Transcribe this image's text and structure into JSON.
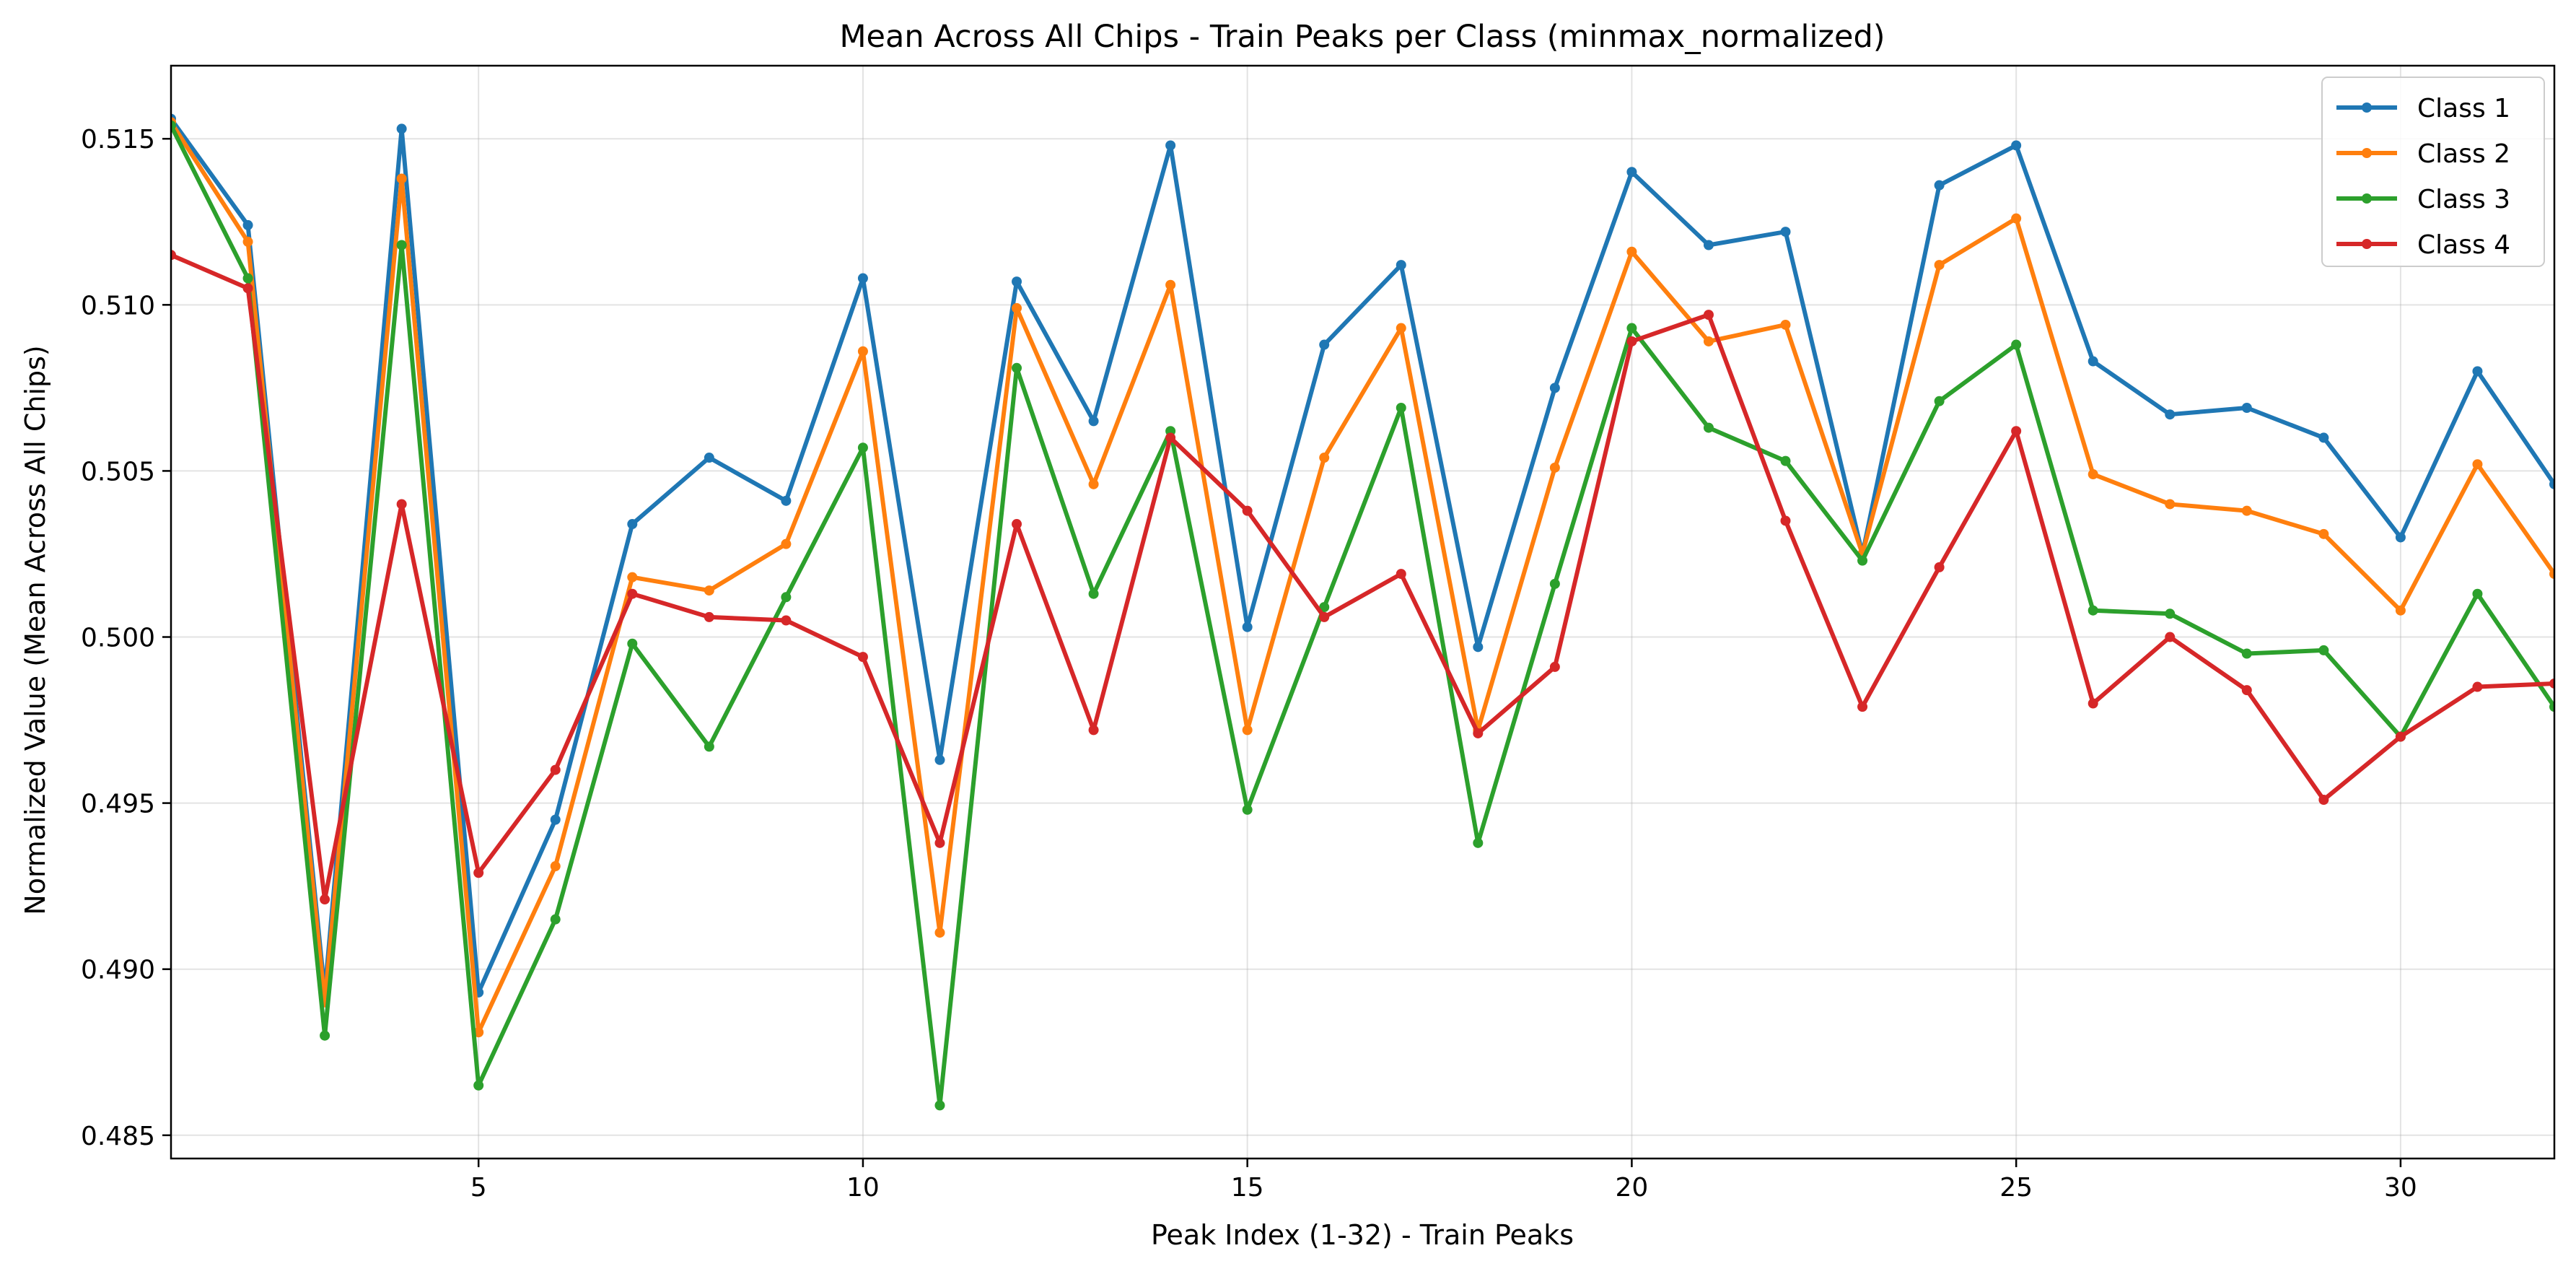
{
  "chart_data": {
    "type": "line",
    "title": "Mean Across All Chips - Train Peaks per Class (minmax_normalized)",
    "xlabel": "Peak Index (1-32) - Train Peaks",
    "ylabel": "Normalized Value (Mean Across All Chips)",
    "xlim": [
      1,
      32
    ],
    "ylim": [
      0.4843,
      0.5172
    ],
    "xticks": [
      5,
      10,
      15,
      20,
      25,
      30
    ],
    "yticks": [
      0.485,
      0.49,
      0.495,
      0.5,
      0.505,
      0.51,
      0.515
    ],
    "xtick_labels": [
      "5",
      "10",
      "15",
      "20",
      "25",
      "30"
    ],
    "ytick_labels": [
      "0.485",
      "0.490",
      "0.495",
      "0.500",
      "0.505",
      "0.510",
      "0.515"
    ],
    "grid": true,
    "legend_position": "top-right",
    "x": [
      1,
      2,
      3,
      4,
      5,
      6,
      7,
      8,
      9,
      10,
      11,
      12,
      13,
      14,
      15,
      16,
      17,
      18,
      19,
      20,
      21,
      22,
      23,
      24,
      25,
      26,
      27,
      28,
      29,
      30,
      31,
      32
    ],
    "series": [
      {
        "name": "Class 1",
        "color": "#1f77b4",
        "values": [
          0.5156,
          0.5124,
          0.4893,
          0.5153,
          0.4893,
          0.4945,
          0.5034,
          0.5054,
          0.5041,
          0.5108,
          0.4963,
          0.5107,
          0.5065,
          0.5148,
          0.5003,
          0.5088,
          0.5112,
          0.4997,
          0.5075,
          0.514,
          0.5118,
          0.5122,
          0.5025,
          0.5136,
          0.5148,
          0.5083,
          0.5067,
          0.5069,
          0.506,
          0.503,
          0.508,
          0.5046
        ]
      },
      {
        "name": "Class 2",
        "color": "#ff7f0e",
        "values": [
          0.5155,
          0.5119,
          0.489,
          0.5138,
          0.4881,
          0.4931,
          0.5018,
          0.5014,
          0.5028,
          0.5086,
          0.4911,
          0.5099,
          0.5046,
          0.5106,
          0.4972,
          0.5054,
          0.5093,
          0.4972,
          0.5051,
          0.5116,
          0.5089,
          0.5094,
          0.5025,
          0.5112,
          0.5126,
          0.5049,
          0.504,
          0.5038,
          0.5031,
          0.5008,
          0.5052,
          0.5019
        ]
      },
      {
        "name": "Class 3",
        "color": "#2ca02c",
        "values": [
          0.5154,
          0.5108,
          0.488,
          0.5118,
          0.4865,
          0.4915,
          0.4998,
          0.4967,
          0.5012,
          0.5057,
          0.4859,
          0.5081,
          0.5013,
          0.5062,
          0.4948,
          0.5009,
          0.5069,
          0.4938,
          0.5016,
          0.5093,
          0.5063,
          0.5053,
          0.5023,
          0.5071,
          0.5088,
          0.5008,
          0.5007,
          0.4995,
          0.4996,
          0.497,
          0.5013,
          0.4979
        ]
      },
      {
        "name": "Class 4",
        "color": "#d62728",
        "values": [
          0.5115,
          0.5105,
          0.4921,
          0.504,
          0.4929,
          0.496,
          0.5013,
          0.5006,
          0.5005,
          0.4994,
          0.4938,
          0.5034,
          0.4972,
          0.506,
          0.5038,
          0.5006,
          0.5019,
          0.4971,
          0.4991,
          0.5089,
          0.5097,
          0.5035,
          0.4979,
          0.5021,
          0.5062,
          0.498,
          0.5,
          0.4984,
          0.4951,
          0.497,
          0.4985,
          0.4986
        ]
      }
    ]
  }
}
